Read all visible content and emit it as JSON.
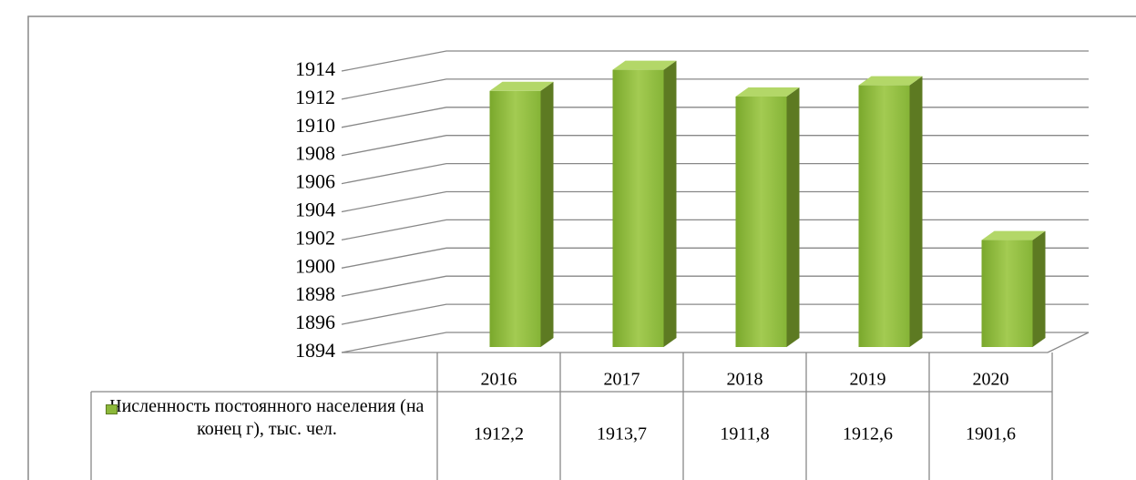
{
  "chart_data": {
    "type": "bar3d",
    "categories": [
      "2016",
      "2017",
      "2018",
      "2019",
      "2020"
    ],
    "series": [
      {
        "name": "Численность постоянного населения (на конец г), тыс. чел.",
        "color": "#8cb83a",
        "values": [
          1912.2,
          1913.7,
          1911.8,
          1912.6,
          1901.6
        ],
        "value_labels": [
          "1912,2",
          "1913,7",
          "1911,8",
          "1912,6",
          "1901,6"
        ]
      }
    ],
    "ylim": [
      1894,
      1914
    ],
    "yticks": [
      1894,
      1896,
      1898,
      1900,
      1902,
      1904,
      1906,
      1908,
      1910,
      1912,
      1914
    ],
    "grid": true
  }
}
